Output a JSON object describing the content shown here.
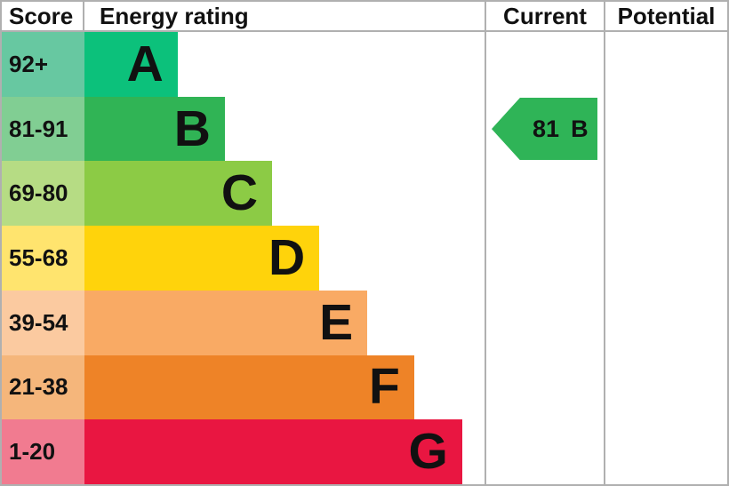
{
  "header": {
    "score": "Score",
    "energy_rating": "Energy rating",
    "current": "Current",
    "potential": "Potential"
  },
  "bands": [
    {
      "letter": "A",
      "score_range": "92+",
      "bar_color": "#0cc17b",
      "score_bg": "#67c8a1",
      "bar_pct": 23.3
    },
    {
      "letter": "B",
      "score_range": "81-91",
      "bar_color": "#30b455",
      "score_bg": "#81ce93",
      "bar_pct": 35.1
    },
    {
      "letter": "C",
      "score_range": "69-80",
      "bar_color": "#8ccb45",
      "score_bg": "#b6dc84",
      "bar_pct": 46.9
    },
    {
      "letter": "D",
      "score_range": "55-68",
      "bar_color": "#ffd30b",
      "score_bg": "#ffe46e",
      "bar_pct": 58.7
    },
    {
      "letter": "E",
      "score_range": "39-54",
      "bar_color": "#f9aa64",
      "score_bg": "#fbcaa0",
      "bar_pct": 70.7
    },
    {
      "letter": "F",
      "score_range": "21-38",
      "bar_color": "#ee8327",
      "score_bg": "#f5b67b",
      "bar_pct": 82.4
    },
    {
      "letter": "G",
      "score_range": "1-20",
      "bar_color": "#e91641",
      "score_bg": "#f17b90",
      "bar_pct": 94.4
    }
  ],
  "current": {
    "value": "81",
    "letter": "B",
    "band_index": 1,
    "color": "#2fb457"
  },
  "potential": {
    "value": null
  },
  "colors": {
    "border": "#b0b0b0",
    "text": "#111111"
  },
  "chart_data": {
    "type": "bar",
    "orientation": "horizontal",
    "title": "Energy rating",
    "categories": [
      "A",
      "B",
      "C",
      "D",
      "E",
      "F",
      "G"
    ],
    "score_ranges": [
      "92+",
      "81-91",
      "69-80",
      "55-68",
      "39-54",
      "21-38",
      "1-20"
    ],
    "values": [
      23.3,
      35.1,
      46.9,
      58.7,
      70.7,
      82.4,
      94.4
    ],
    "value_unit": "percent of rating column width",
    "colors": [
      "#0cc17b",
      "#30b455",
      "#8ccb45",
      "#ffd30b",
      "#f9aa64",
      "#ee8327",
      "#e91641"
    ],
    "columns": [
      "Score",
      "Energy rating",
      "Current",
      "Potential"
    ],
    "current_rating": {
      "score": 81,
      "band": "B"
    },
    "potential_rating": null,
    "legend": false,
    "grid": false
  }
}
